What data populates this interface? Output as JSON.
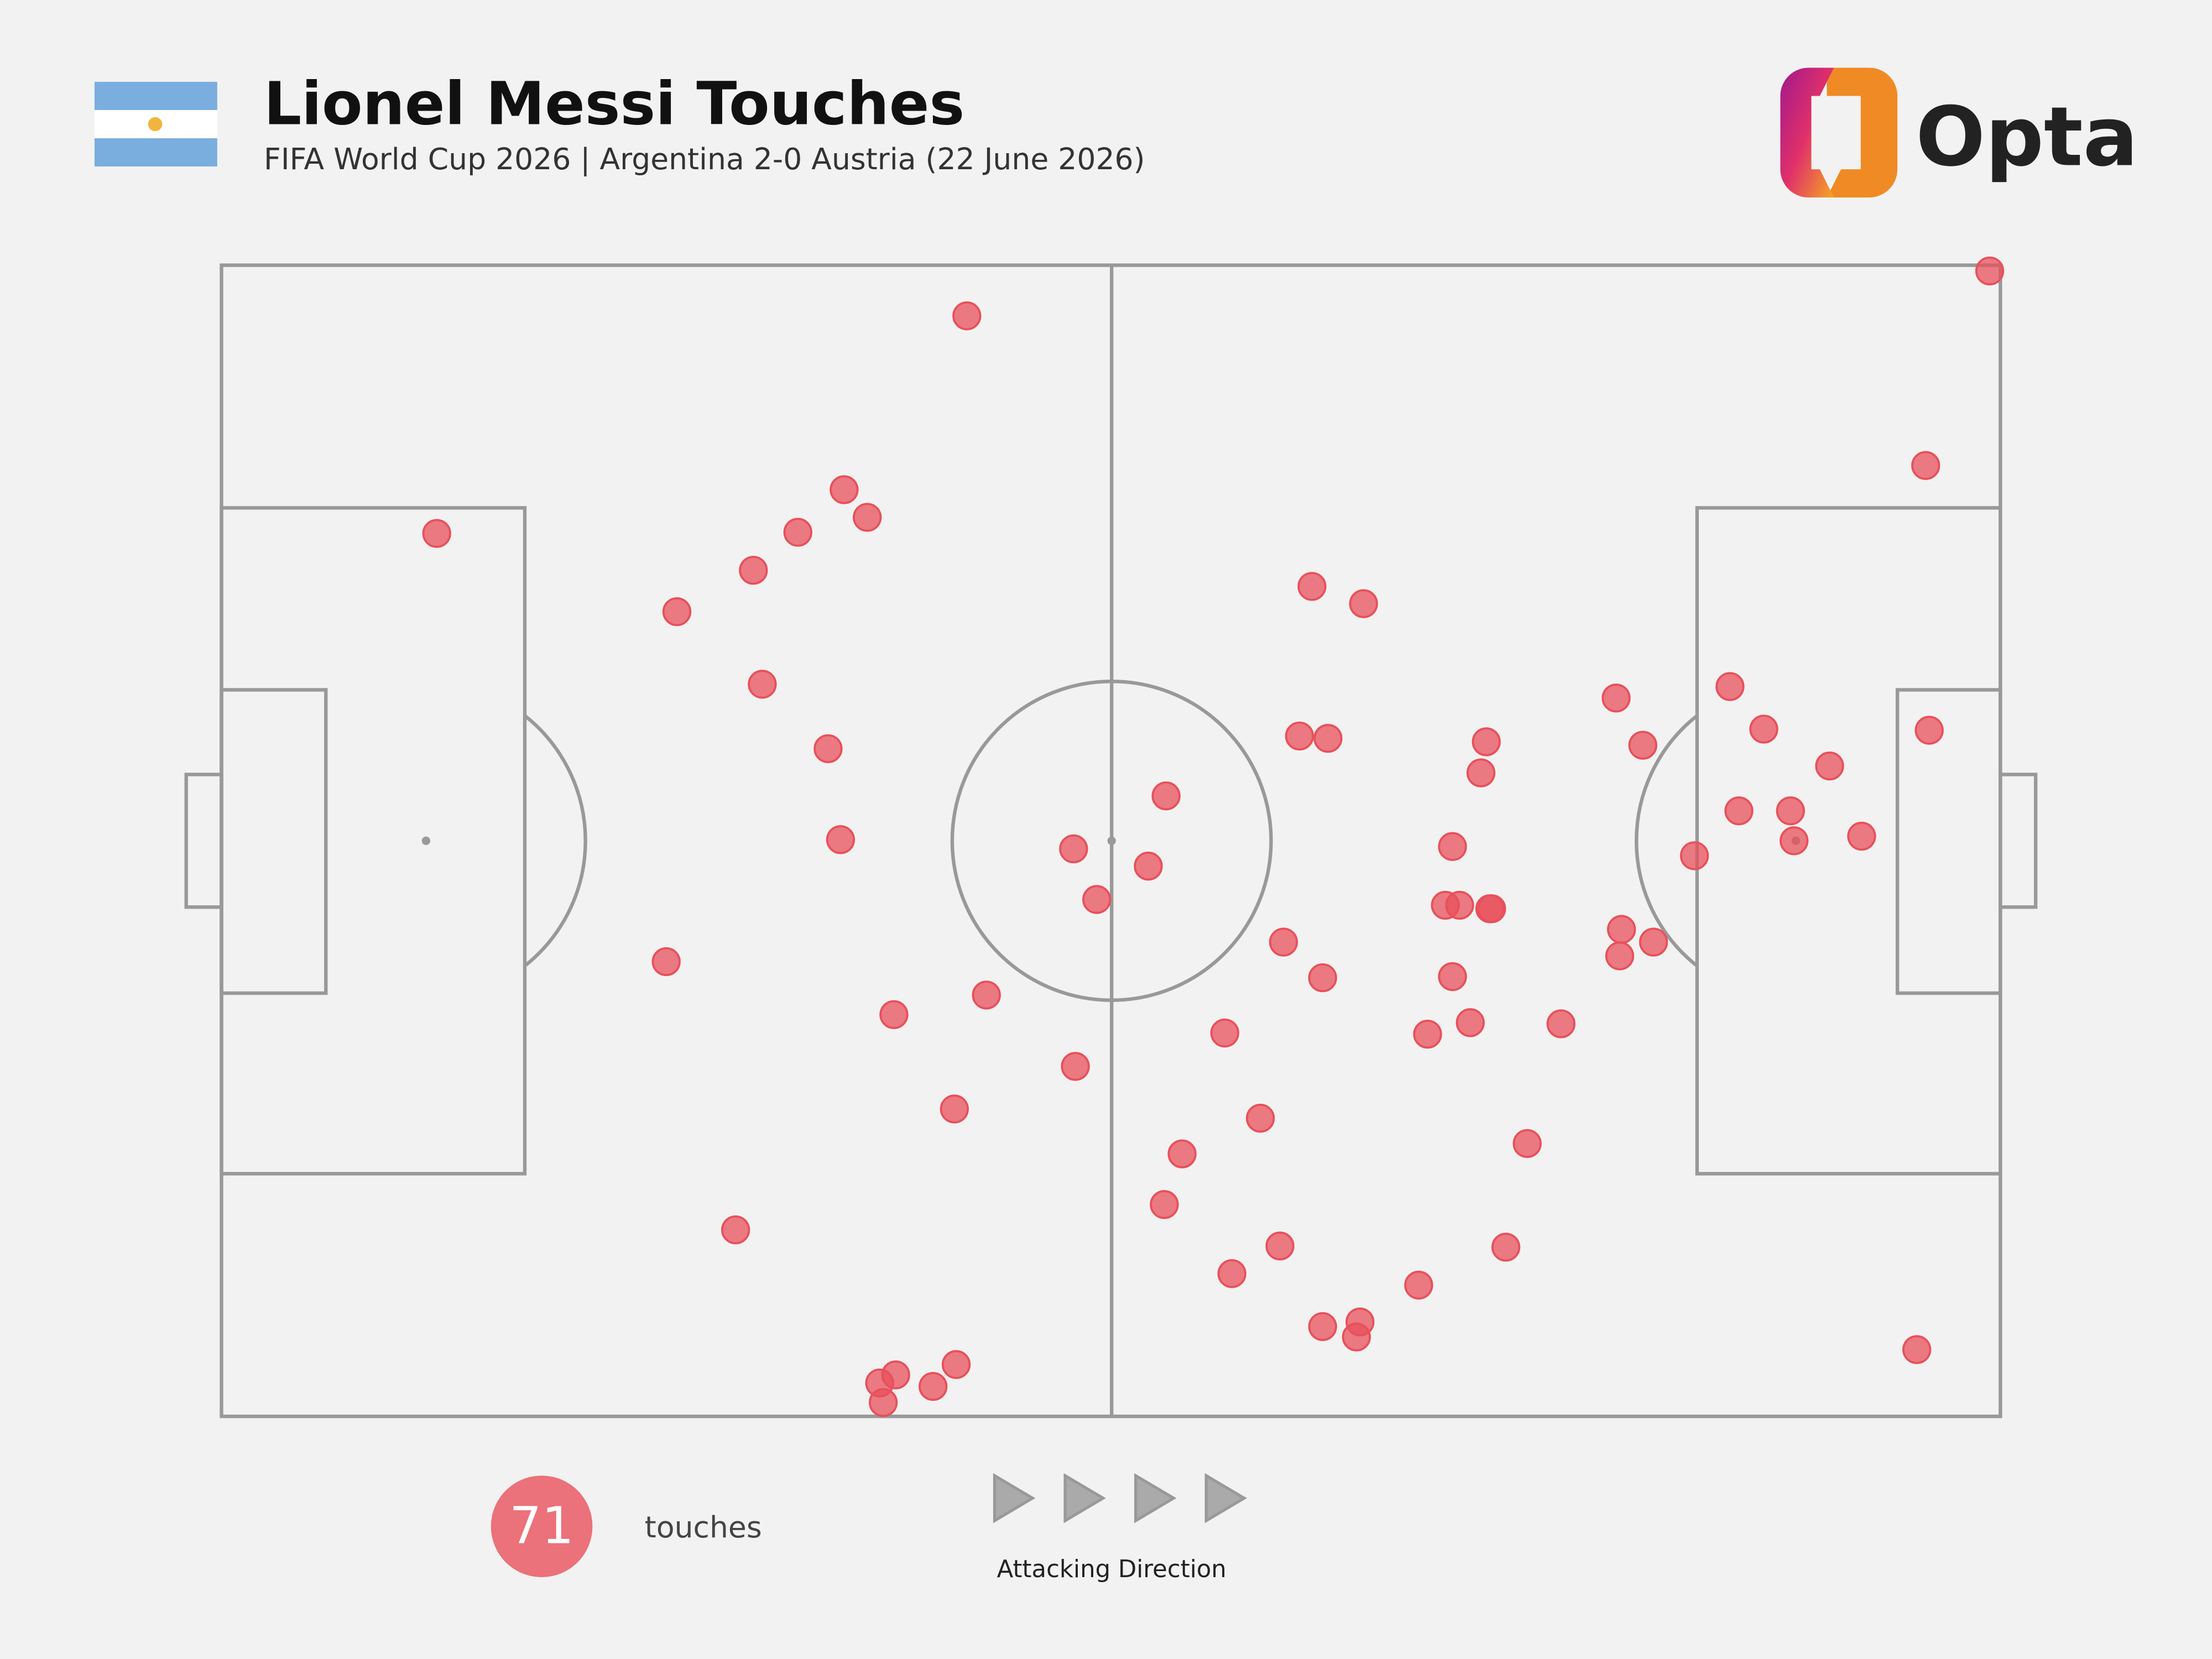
{
  "chart_data": {
    "type": "scatter",
    "title": "Lionel Messi Touches",
    "subtitle": "FIFA World Cup 2026 | Argentina 2-0 Austria (22 June 2026)",
    "brand": "Opta",
    "total": 71,
    "total_label": "touches",
    "direction_label": "Attacking Direction",
    "color": "#e8505b",
    "xlim": [
      0,
      100
    ],
    "ylim": [
      0,
      100
    ],
    "x": [
      41.9,
      12.1,
      35.0,
      36.3,
      32.4,
      29.9,
      25.6,
      30.4,
      34.1,
      34.8,
      25.0,
      37.8,
      43.0,
      48.0,
      41.2,
      28.9,
      41.3,
      37.9,
      37.0,
      37.2,
      40.0,
      53.1,
      47.9,
      52.1,
      49.2,
      61.3,
      64.2,
      60.6,
      62.2,
      71.1,
      70.8,
      69.2,
      68.8,
      69.6,
      71.4,
      71.3,
      59.7,
      61.9,
      69.2,
      56.4,
      67.8,
      70.2,
      75.3,
      58.4,
      54.0,
      53.0,
      73.4,
      59.5,
      56.8,
      72.2,
      67.3,
      61.9,
      64.0,
      63.8,
      78.4,
      84.8,
      86.7,
      79.9,
      90.4,
      96.0,
      85.3,
      88.2,
      88.4,
      92.2,
      82.8,
      78.7,
      80.5,
      78.6,
      95.3,
      95.8,
      99.4
    ],
    "values": [
      95.6,
      76.7,
      80.5,
      78.1,
      76.8,
      73.5,
      69.9,
      63.6,
      58.0,
      50.1,
      39.5,
      34.9,
      36.6,
      30.4,
      26.7,
      16.2,
      4.5,
      3.6,
      2.9,
      1.2,
      2.6,
      53.9,
      49.3,
      47.8,
      44.9,
      72.1,
      70.6,
      59.1,
      58.9,
      58.6,
      55.9,
      49.5,
      44.4,
      44.4,
      44.1,
      44.1,
      41.2,
      38.1,
      38.2,
      33.3,
      33.2,
      34.2,
      34.1,
      25.9,
      22.8,
      18.4,
      23.7,
      14.8,
      12.4,
      14.7,
      11.4,
      7.8,
      8.2,
      6.9,
      62.4,
      63.4,
      59.7,
      58.3,
      56.5,
      59.6,
      52.6,
      52.6,
      50.0,
      50.4,
      48.7,
      42.3,
      41.2,
      40.0,
      5.8,
      82.6,
      99.5
    ]
  }
}
